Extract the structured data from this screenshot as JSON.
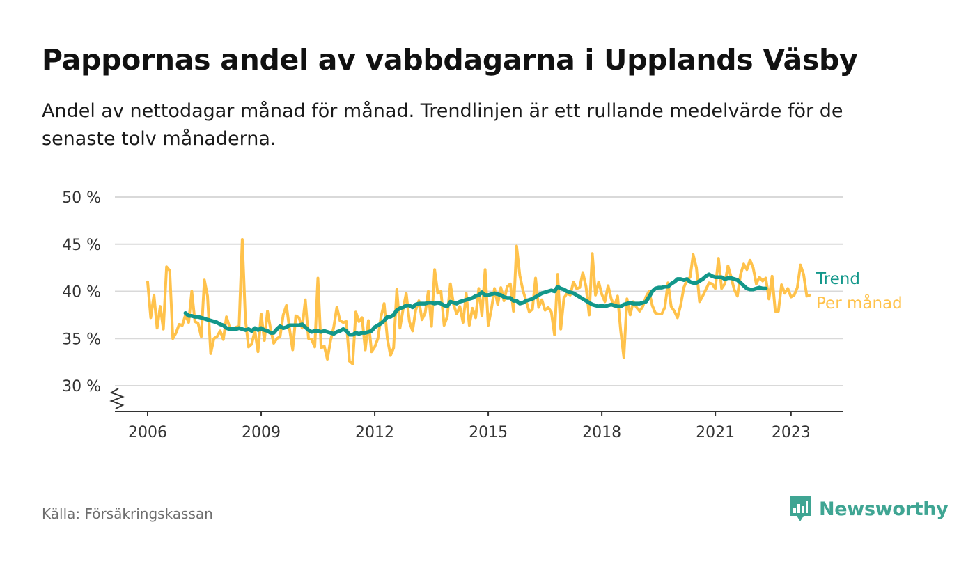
{
  "header": {
    "title": "Pappornas andel av vabbdagarna i Upplands Väsby",
    "subtitle": "Andel av nettodagar månad för månad. Trendlinjen är ett rullande medelvärde för de senaste tolv månaderna."
  },
  "footer": {
    "source": "Källa: Försäkringskassan",
    "brand": "Newsworthy",
    "brand_icon": "newsworthy-logo-icon",
    "brand_color": "#3fa593"
  },
  "chart_data": {
    "type": "line",
    "title": "Pappornas andel av vabbdagarna i Upplands Väsby",
    "xlabel": "",
    "ylabel": "",
    "x_start": "2006-01",
    "x_ticks": [
      "2006",
      "2009",
      "2012",
      "2015",
      "2018",
      "2021",
      "2023"
    ],
    "y_ticks": [
      "30 %",
      "35 %",
      "40 %",
      "45 %",
      "50 %"
    ],
    "ylim": [
      30,
      50
    ],
    "y_axis_break": true,
    "grid": true,
    "legend": "direct labels at right end of lines",
    "colors": {
      "trend": "#12978a",
      "monthly": "#ffc24b"
    },
    "series": [
      {
        "name": "Per månad",
        "key": "monthly",
        "values": [
          41.0,
          37.2,
          39.6,
          36.1,
          38.4,
          36.0,
          42.6,
          42.2,
          35.0,
          35.6,
          36.5,
          36.4,
          37.5,
          36.7,
          40.0,
          36.8,
          36.6,
          35.2,
          41.2,
          39.5,
          33.4,
          35.0,
          35.2,
          35.8,
          34.9,
          37.3,
          36.2,
          36.0,
          36.2,
          36.3,
          45.5,
          37.0,
          34.1,
          34.4,
          35.8,
          33.6,
          37.6,
          34.8,
          37.9,
          36.0,
          34.5,
          35.0,
          35.2,
          37.5,
          38.5,
          36.0,
          33.8,
          37.4,
          37.2,
          36.1,
          39.1,
          35.0,
          34.9,
          34.1,
          41.4,
          34.0,
          34.2,
          32.8,
          34.8,
          36.2,
          38.3,
          36.9,
          36.7,
          36.8,
          32.6,
          32.3,
          37.8,
          36.8,
          37.2,
          33.8,
          36.9,
          33.6,
          34.1,
          35.0,
          37.3,
          38.7,
          35.0,
          33.2,
          34.0,
          40.2,
          36.1,
          38.1,
          39.8,
          36.8,
          35.8,
          38.0,
          39.0,
          37.0,
          37.7,
          40.0,
          36.3,
          42.3,
          39.8,
          40.0,
          36.4,
          37.3,
          40.8,
          38.6,
          37.6,
          38.4,
          36.7,
          39.8,
          36.4,
          38.2,
          37.2,
          40.3,
          37.4,
          42.3,
          36.4,
          38.1,
          40.3,
          38.6,
          40.4,
          39.0,
          40.5,
          40.8,
          37.9,
          44.8,
          41.7,
          40.1,
          39.0,
          37.8,
          38.1,
          41.4,
          38.3,
          39.1,
          38.0,
          38.3,
          37.8,
          35.4,
          41.8,
          36.0,
          39.3,
          39.8,
          39.6,
          41.0,
          40.3,
          40.4,
          42.0,
          40.5,
          37.5,
          44.0,
          39.6,
          41.0,
          39.7,
          38.9,
          40.6,
          39.2,
          38.4,
          39.5,
          35.8,
          33.0,
          39.2,
          37.5,
          38.9,
          38.3,
          37.9,
          38.4,
          39.4,
          40.0,
          38.5,
          37.7,
          37.6,
          37.6,
          38.3,
          40.9,
          38.4,
          37.9,
          37.2,
          38.5,
          40.4,
          41.2,
          41.5,
          43.9,
          42.5,
          38.9,
          39.5,
          40.2,
          40.9,
          40.8,
          40.3,
          43.5,
          40.3,
          40.8,
          42.7,
          41.5,
          40.2,
          39.5,
          41.8,
          42.9,
          42.3,
          43.3,
          42.5,
          40.8,
          41.5,
          41.1,
          41.4,
          39.2,
          41.6,
          37.9,
          37.9,
          40.7,
          39.8,
          40.3,
          39.4,
          39.6,
          40.4,
          42.8,
          41.8,
          39.5,
          39.6
        ]
      },
      {
        "name": "Trend",
        "key": "trend",
        "start_index": 12,
        "values": [
          37.7,
          37.4,
          37.4,
          37.3,
          37.3,
          37.2,
          37.1,
          37.0,
          36.9,
          36.8,
          36.7,
          36.5,
          36.4,
          36.1,
          36.0,
          36.0,
          36.0,
          36.1,
          36.0,
          35.9,
          36.0,
          35.8,
          36.1,
          35.9,
          36.1,
          35.9,
          35.8,
          35.6,
          35.6,
          36.0,
          36.3,
          36.1,
          36.2,
          36.4,
          36.4,
          36.4,
          36.4,
          36.5,
          36.2,
          35.9,
          35.7,
          35.8,
          35.8,
          35.7,
          35.8,
          35.7,
          35.6,
          35.5,
          35.7,
          35.8,
          36.0,
          35.8,
          35.4,
          35.4,
          35.6,
          35.5,
          35.6,
          35.6,
          35.7,
          35.8,
          36.2,
          36.4,
          36.6,
          36.9,
          37.3,
          37.3,
          37.5,
          38.0,
          38.2,
          38.3,
          38.5,
          38.5,
          38.3,
          38.6,
          38.7,
          38.7,
          38.7,
          38.8,
          38.8,
          38.7,
          38.8,
          38.7,
          38.5,
          38.4,
          38.9,
          38.8,
          38.7,
          38.9,
          39.0,
          39.1,
          39.2,
          39.3,
          39.5,
          39.6,
          39.9,
          39.6,
          39.6,
          39.7,
          39.8,
          39.7,
          39.6,
          39.4,
          39.3,
          39.3,
          39.0,
          39.0,
          38.7,
          38.8,
          39.0,
          39.1,
          39.2,
          39.4,
          39.6,
          39.8,
          39.9,
          40.0,
          40.1,
          40.0,
          40.5,
          40.3,
          40.2,
          40.0,
          39.9,
          39.8,
          39.6,
          39.4,
          39.2,
          39.0,
          38.8,
          38.6,
          38.5,
          38.4,
          38.5,
          38.4,
          38.5,
          38.6,
          38.5,
          38.4,
          38.4,
          38.6,
          38.7,
          38.8,
          38.7,
          38.7,
          38.7,
          38.8,
          38.9,
          39.4,
          40.0,
          40.3,
          40.4,
          40.4,
          40.5,
          40.5,
          40.8,
          41.0,
          41.3,
          41.3,
          41.2,
          41.3,
          41.0,
          40.9,
          40.9,
          41.1,
          41.3,
          41.6,
          41.8,
          41.6,
          41.5,
          41.5,
          41.5,
          41.3,
          41.4,
          41.4,
          41.3,
          41.2,
          40.9,
          40.6,
          40.3,
          40.2,
          40.2,
          40.3,
          40.4,
          40.3,
          40.3
        ]
      }
    ]
  }
}
